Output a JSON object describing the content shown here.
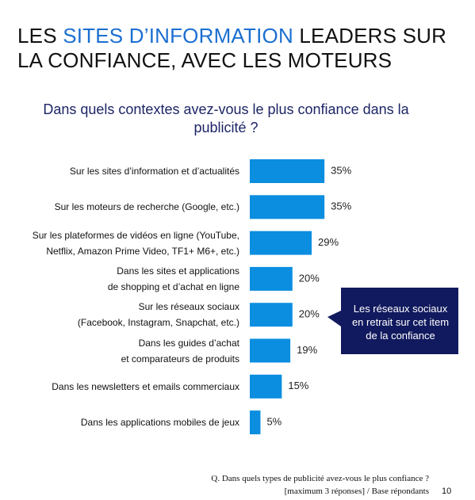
{
  "slide": {
    "title_before": "LES",
    "title_highlight": "SITES D’INFORMATION",
    "title_line1_after": "LEADERS SUR",
    "title_line2": "LA CONFIANCE, AVEC LES MOTEURS",
    "callout": "Les réseaux sociaux en retrait sur cet item de la confiance",
    "footnote_line1": "Q. Dans quels types de publicité avez-vous le plus confiance ?",
    "footnote_line2": "[maximum 3 réponses]  /  Base répondants",
    "page_number": "10"
  },
  "chart_data": {
    "type": "bar",
    "orientation": "horizontal",
    "title": "Dans quels contextes avez-vous le plus confiance dans la publicité ?",
    "categories": [
      "Sur les sites d’information et d’actualités",
      "Sur les moteurs de recherche (Google, etc.)",
      "Sur les plateformes de vidéos en ligne (YouTube,\nNetflix, Amazon Prime Video, TF1+ M6+, etc.)",
      "Dans les sites et applications\nde shopping et d’achat en ligne",
      "Sur les réseaux sociaux\n(Facebook, Instagram, Snapchat, etc.)",
      "Dans les guides d’achat\net comparateurs de produits",
      "Dans les newsletters et emails commerciaux",
      "Dans les applications mobiles de jeux"
    ],
    "values": [
      35,
      35,
      29,
      20,
      20,
      19,
      15,
      5
    ],
    "value_labels": [
      "35%",
      "35%",
      "29%",
      "20%",
      "20%",
      "19%",
      "15%",
      "5%"
    ],
    "color": "#0b8ee0"
  }
}
